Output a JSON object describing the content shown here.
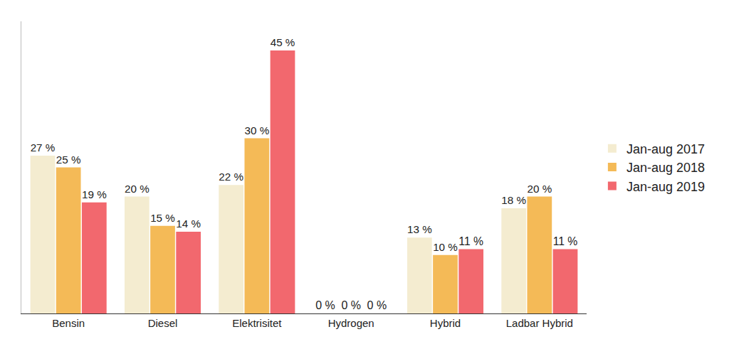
{
  "chart_data": {
    "type": "bar",
    "categories": [
      "Bensin",
      "Diesel",
      "Elektrisitet",
      "Hydrogen",
      "Hybrid",
      "Ladbar Hybrid"
    ],
    "series": [
      {
        "name": "Jan-aug 2017",
        "color": "#f4ecd0",
        "values": [
          27,
          20,
          22,
          0,
          13,
          18
        ],
        "value_labels": [
          "27 %",
          "20 %",
          "22 %",
          "0 %",
          "13 %",
          "18 %"
        ]
      },
      {
        "name": "Jan-aug 2018",
        "color": "#f4ba57",
        "values": [
          25,
          15,
          30,
          0,
          10,
          20
        ],
        "value_labels": [
          "25 %",
          "15 %",
          "30 %",
          "0 %",
          "10 %",
          "20 %"
        ]
      },
      {
        "name": "Jan-aug 2019",
        "color": "#f2686e",
        "values": [
          19,
          14,
          45,
          0,
          11,
          11
        ],
        "value_labels": [
          "19 %",
          "14 %",
          "45 %",
          "0 %",
          "11 %",
          "11 %"
        ]
      }
    ],
    "ylim": [
      0,
      50
    ],
    "grid": false,
    "legend": "right",
    "data_labels": true,
    "tick_labels": "x"
  }
}
